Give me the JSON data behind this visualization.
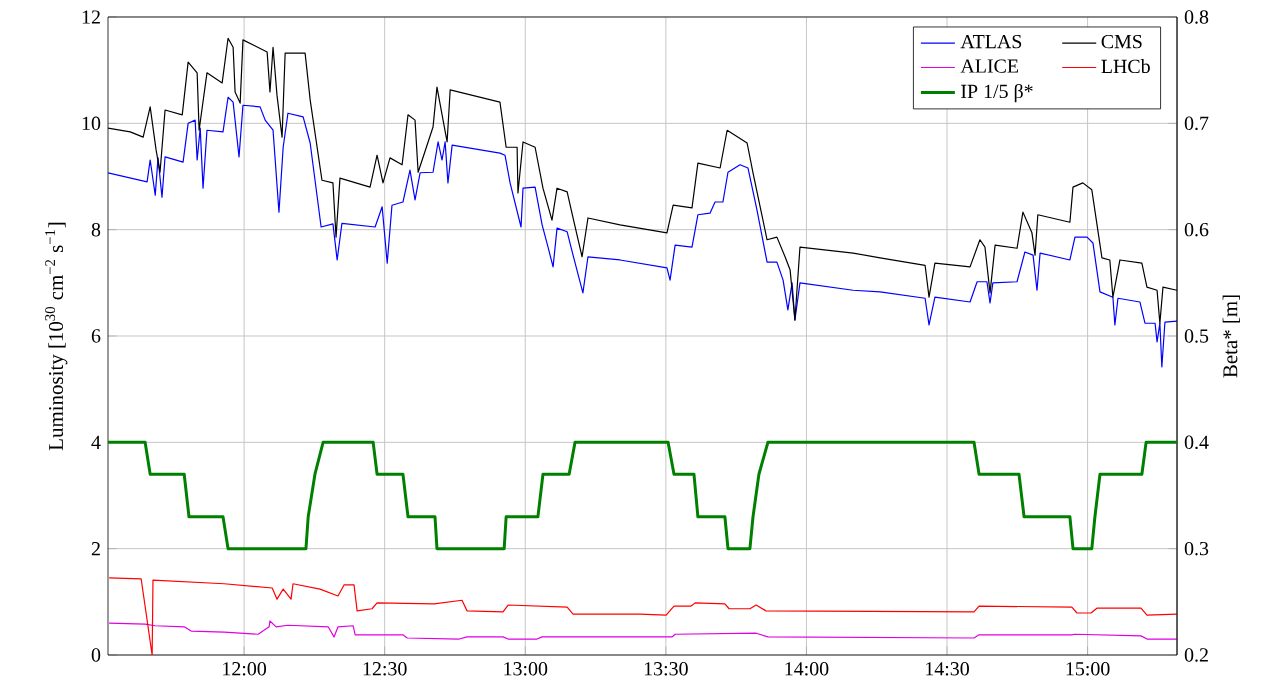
{
  "chart_data": {
    "type": "line",
    "xlabel": null,
    "ylabel": "Luminosity [10$^{30}$ cm$^{−2}$ s$^{−1}$]",
    "y2label": "Beta* [m]",
    "xlim": [
      11.516,
      15.318
    ],
    "xticks": [
      {
        "value": 12,
        "label": "12:00"
      },
      {
        "value": 12.5,
        "label": "12:30"
      },
      {
        "value": 13,
        "label": "13:00"
      },
      {
        "value": 13.5,
        "label": "13:30"
      },
      {
        "value": 14,
        "label": "14:00"
      },
      {
        "value": 14.5,
        "label": "14:30"
      },
      {
        "value": 15,
        "label": "15:00"
      }
    ],
    "ylim": [
      0,
      12
    ],
    "yticks": [
      0,
      2,
      4,
      6,
      8,
      10,
      12
    ],
    "y2lim": [
      0.2,
      0.8
    ],
    "y2ticks": [
      0.2,
      0.3,
      0.4,
      0.5,
      0.6,
      0.7,
      0.8
    ],
    "grid": true,
    "legend": "top right",
    "line_style": "solid",
    "series": [
      {
        "name": "ATLAS",
        "color": "#0000ff",
        "x": [
          11.516,
          11.655,
          11.666,
          11.684,
          11.694,
          11.708,
          11.719,
          11.783,
          11.801,
          11.826,
          11.833,
          11.844,
          11.854,
          11.868,
          11.925,
          11.943,
          11.961,
          11.982,
          11.996,
          12.057,
          12.075,
          12.103,
          12.124,
          12.139,
          12.156,
          12.21,
          12.235,
          12.274,
          12.316,
          12.331,
          12.348,
          12.466,
          12.491,
          12.509,
          12.526,
          12.565,
          12.59,
          12.608,
          12.626,
          12.672,
          12.69,
          12.704,
          12.715,
          12.725,
          12.74,
          12.91,
          12.928,
          12.946,
          12.985,
          12.992,
          13.035,
          13.06,
          13.081,
          13.099,
          13.113,
          13.149,
          13.17,
          13.205,
          13.223,
          13.337,
          13.504,
          13.515,
          13.533,
          13.593,
          13.614,
          13.657,
          13.675,
          13.703,
          13.721,
          13.764,
          13.792,
          13.824,
          13.86,
          13.895,
          13.917,
          13.934,
          13.949,
          13.959,
          13.977,
          14.166,
          14.262,
          14.422,
          14.436,
          14.457,
          14.582,
          14.607,
          14.642,
          14.653,
          14.663,
          14.749,
          14.777,
          14.806,
          14.82,
          14.831,
          14.937,
          14.955,
          14.998,
          15.019,
          15.044,
          15.09,
          15.097,
          15.108,
          15.186,
          15.204,
          15.24,
          15.247,
          15.257,
          15.264,
          15.275,
          15.318
        ],
        "values": [
          9.07,
          8.9,
          9.31,
          8.65,
          9.35,
          8.61,
          9.37,
          9.27,
          10.0,
          10.06,
          9.31,
          9.91,
          8.78,
          9.87,
          9.84,
          10.49,
          10.4,
          9.37,
          10.34,
          10.31,
          10.06,
          9.87,
          8.33,
          9.55,
          10.19,
          10.12,
          9.63,
          8.05,
          8.11,
          7.43,
          8.12,
          8.05,
          8.43,
          7.37,
          8.46,
          8.52,
          9.12,
          8.56,
          9.07,
          9.08,
          9.65,
          9.31,
          9.65,
          8.88,
          9.59,
          9.44,
          9.4,
          8.88,
          8.05,
          8.78,
          8.8,
          8.09,
          7.67,
          7.3,
          8.03,
          7.96,
          7.52,
          6.81,
          7.49,
          7.43,
          7.28,
          7.05,
          7.71,
          7.67,
          8.28,
          8.31,
          8.52,
          8.52,
          9.08,
          9.22,
          9.16,
          8.37,
          7.39,
          7.39,
          7.05,
          6.49,
          7.0,
          6.3,
          7.0,
          6.86,
          6.83,
          6.71,
          6.21,
          6.73,
          6.64,
          7.02,
          7.02,
          6.62,
          7.0,
          7.02,
          7.58,
          7.52,
          6.86,
          7.56,
          7.43,
          7.86,
          7.86,
          7.75,
          6.83,
          6.73,
          6.21,
          6.71,
          6.64,
          6.24,
          6.24,
          5.89,
          6.24,
          5.42,
          6.26,
          6.28
        ]
      },
      {
        "name": "CMS",
        "color": "#000000",
        "x": [
          11.516,
          11.595,
          11.641,
          11.666,
          11.687,
          11.701,
          11.719,
          11.78,
          11.801,
          11.833,
          11.84,
          11.868,
          11.922,
          11.943,
          11.961,
          11.968,
          11.986,
          11.996,
          12.082,
          12.092,
          12.103,
          12.117,
          12.135,
          12.146,
          12.217,
          12.235,
          12.277,
          12.316,
          12.327,
          12.341,
          12.448,
          12.473,
          12.494,
          12.519,
          12.562,
          12.583,
          12.608,
          12.619,
          12.672,
          12.686,
          12.722,
          12.733,
          12.91,
          12.932,
          12.971,
          12.974,
          12.992,
          13.035,
          13.063,
          13.095,
          13.113,
          13.149,
          13.17,
          13.202,
          13.223,
          13.337,
          13.504,
          13.526,
          13.593,
          13.614,
          13.693,
          13.718,
          13.789,
          13.81,
          13.86,
          13.895,
          13.924,
          13.942,
          13.959,
          13.977,
          14.166,
          14.262,
          14.422,
          14.436,
          14.457,
          14.582,
          14.617,
          14.635,
          14.653,
          14.671,
          14.749,
          14.77,
          14.802,
          14.813,
          14.823,
          14.937,
          14.948,
          14.983,
          15.015,
          15.051,
          15.079,
          15.09,
          15.115,
          15.193,
          15.211,
          15.247,
          15.257,
          15.268,
          15.318
        ],
        "values": [
          9.91,
          9.84,
          9.74,
          10.31,
          9.5,
          9.08,
          10.25,
          10.16,
          11.15,
          10.95,
          9.87,
          10.95,
          10.76,
          11.6,
          11.43,
          10.59,
          10.38,
          11.57,
          11.34,
          10.59,
          11.43,
          10.53,
          9.74,
          11.32,
          11.32,
          10.44,
          8.93,
          8.88,
          7.86,
          8.97,
          8.8,
          9.4,
          8.88,
          9.35,
          9.22,
          10.16,
          10.06,
          9.08,
          9.93,
          10.68,
          9.65,
          10.63,
          10.4,
          9.55,
          9.55,
          8.69,
          9.65,
          9.55,
          8.78,
          8.18,
          8.78,
          8.71,
          8.22,
          7.49,
          8.22,
          8.09,
          7.94,
          8.46,
          8.41,
          9.25,
          9.16,
          9.87,
          9.63,
          9.07,
          7.81,
          7.86,
          7.49,
          7.24,
          6.3,
          7.67,
          7.56,
          7.47,
          7.33,
          6.73,
          7.37,
          7.3,
          7.81,
          7.67,
          6.81,
          7.71,
          7.65,
          8.33,
          7.94,
          7.52,
          8.28,
          8.14,
          8.8,
          8.88,
          8.75,
          7.47,
          7.43,
          6.73,
          7.43,
          7.37,
          6.92,
          6.86,
          6.24,
          6.92,
          6.86
        ]
      },
      {
        "name": "ALICE",
        "color": "#e000e0",
        "x": [
          11.52,
          11.648,
          11.684,
          11.787,
          11.812,
          11.929,
          12.05,
          12.089,
          12.092,
          12.114,
          12.156,
          12.299,
          12.32,
          12.334,
          12.388,
          12.395,
          12.565,
          12.58,
          12.765,
          12.793,
          12.921,
          12.939,
          13.042,
          13.06,
          13.522,
          13.533,
          13.821,
          13.863,
          14.596,
          14.614,
          14.944,
          14.955,
          15.19,
          15.211,
          15.318
        ],
        "values": [
          0.6,
          0.58,
          0.55,
          0.53,
          0.45,
          0.43,
          0.39,
          0.53,
          0.64,
          0.53,
          0.56,
          0.53,
          0.34,
          0.53,
          0.55,
          0.38,
          0.38,
          0.32,
          0.3,
          0.34,
          0.34,
          0.3,
          0.3,
          0.34,
          0.34,
          0.39,
          0.41,
          0.34,
          0.32,
          0.38,
          0.38,
          0.39,
          0.36,
          0.3,
          0.3
        ]
      },
      {
        "name": "LHCb",
        "color": "#ff0000",
        "x": [
          11.52,
          11.634,
          11.673,
          11.676,
          11.929,
          12.1,
          12.117,
          12.139,
          12.167,
          12.174,
          12.27,
          12.334,
          12.356,
          12.391,
          12.402,
          12.455,
          12.473,
          12.676,
          12.775,
          12.793,
          12.921,
          12.939,
          13.149,
          13.17,
          13.408,
          13.501,
          13.529,
          13.59,
          13.604,
          13.71,
          13.725,
          13.799,
          13.821,
          13.856,
          14.596,
          14.614,
          14.944,
          14.962,
          15.012,
          15.033,
          15.19,
          15.211,
          15.318
        ],
        "values": [
          1.45,
          1.43,
          0,
          1.41,
          1.34,
          1.26,
          1.05,
          1.24,
          1.05,
          1.34,
          1.24,
          1.11,
          1.32,
          1.32,
          0.83,
          0.87,
          0.98,
          0.96,
          1.03,
          0.83,
          0.81,
          0.94,
          0.9,
          0.77,
          0.77,
          0.75,
          0.92,
          0.92,
          0.98,
          0.96,
          0.87,
          0.87,
          0.94,
          0.83,
          0.81,
          0.92,
          0.9,
          0.79,
          0.79,
          0.88,
          0.88,
          0.75,
          0.77
        ]
      },
      {
        "name": "IP 1/5 β*",
        "color": "#008000",
        "axis": "y2",
        "x": [
          11.516,
          11.648,
          11.666,
          11.787,
          11.804,
          11.925,
          11.943,
          12.22,
          12.228,
          12.252,
          12.281,
          12.459,
          12.473,
          12.565,
          12.583,
          12.679,
          12.686,
          12.925,
          12.932,
          13.045,
          13.063,
          13.156,
          13.177,
          13.508,
          13.529,
          13.6,
          13.614,
          13.71,
          13.721,
          13.799,
          13.81,
          13.831,
          13.863,
          14.596,
          14.614,
          14.756,
          14.774,
          14.937,
          14.948,
          15.015,
          15.026,
          15.044,
          15.193,
          15.208,
          15.318
        ],
        "values": [
          0.4,
          0.4,
          0.37,
          0.37,
          0.33,
          0.33,
          0.3,
          0.3,
          0.33,
          0.37,
          0.4,
          0.4,
          0.37,
          0.37,
          0.33,
          0.33,
          0.3,
          0.3,
          0.33,
          0.33,
          0.37,
          0.37,
          0.4,
          0.4,
          0.37,
          0.37,
          0.33,
          0.33,
          0.3,
          0.3,
          0.33,
          0.37,
          0.4,
          0.4,
          0.37,
          0.37,
          0.33,
          0.33,
          0.3,
          0.3,
          0.33,
          0.37,
          0.37,
          0.4,
          0.4
        ]
      }
    ]
  }
}
